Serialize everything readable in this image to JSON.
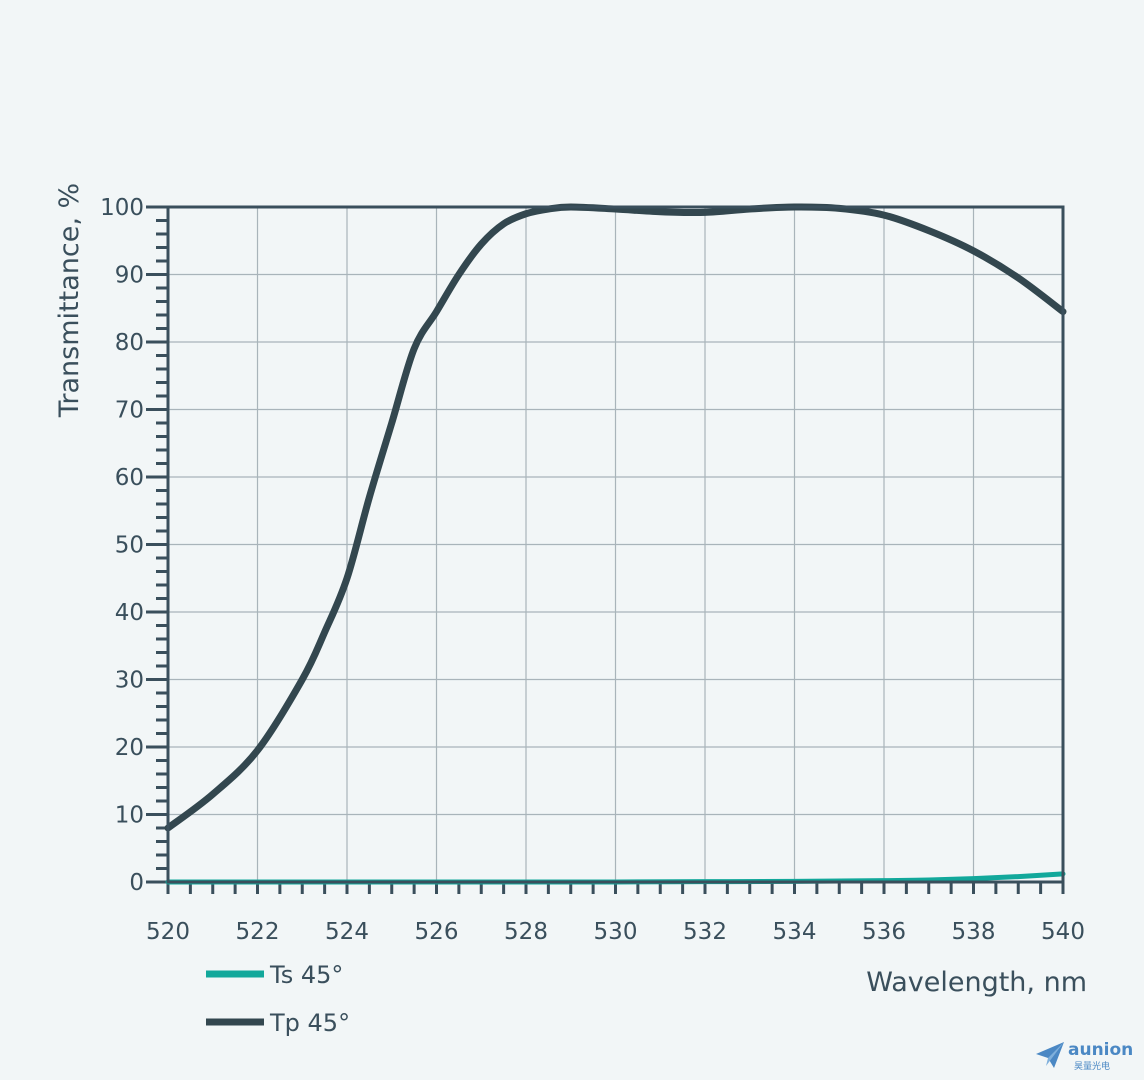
{
  "chart_data": {
    "type": "line",
    "xlabel": "Wavelength, nm",
    "ylabel": "Transmittance, %",
    "xlim": [
      520,
      540
    ],
    "ylim": [
      0,
      100
    ],
    "x_ticks": [
      "520",
      "522",
      "524",
      "526",
      "528",
      "530",
      "532",
      "534",
      "536",
      "538",
      "540"
    ],
    "y_ticks": [
      "0",
      "10",
      "20",
      "30",
      "40",
      "50",
      "60",
      "70",
      "80",
      "90",
      "100"
    ],
    "grid": true,
    "legend_position": "bottom-left",
    "series": [
      {
        "name": "Ts 45°",
        "color": "#12a89b",
        "x": [
          520,
          522,
          524,
          526,
          528,
          530,
          532,
          534,
          536,
          537,
          538,
          539,
          540
        ],
        "y": [
          0,
          0,
          0,
          0,
          0,
          0,
          0.05,
          0.1,
          0.2,
          0.3,
          0.5,
          0.8,
          1.2
        ]
      },
      {
        "name": "Tp 45°",
        "color": "#33474f",
        "x": [
          520,
          521,
          522,
          523,
          523.5,
          524,
          524.5,
          525,
          525.5,
          526,
          526.5,
          527,
          527.5,
          528,
          528.5,
          529,
          530,
          531,
          532,
          533,
          534,
          535,
          536,
          537,
          538,
          539,
          540
        ],
        "y": [
          8,
          13,
          19.5,
          30,
          37,
          45,
          57,
          68,
          79,
          84.5,
          90,
          94.5,
          97.5,
          99,
          99.7,
          100,
          99.7,
          99.3,
          99.2,
          99.7,
          100,
          99.8,
          98.8,
          96.5,
          93.5,
          89.5,
          84.5
        ]
      }
    ]
  },
  "logo": {
    "name": "aunion",
    "subtext": "昊量光电"
  }
}
